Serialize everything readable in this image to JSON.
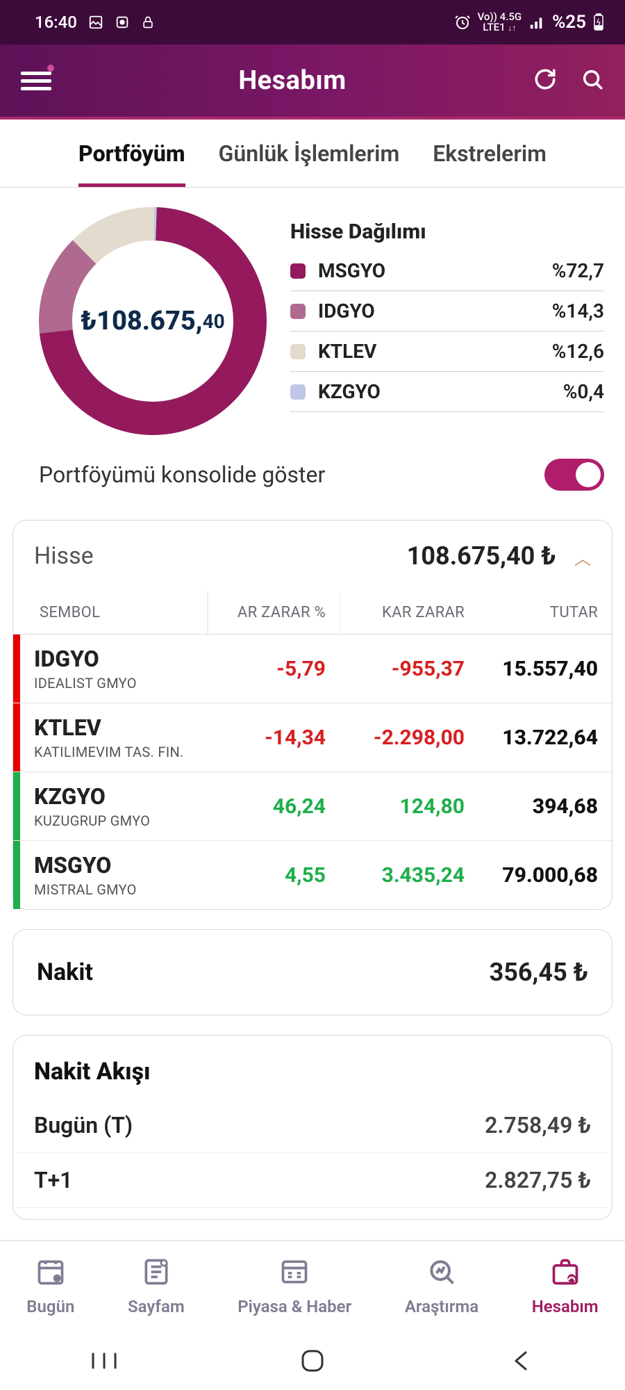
{
  "status": {
    "time": "16:40",
    "battery": "%25",
    "network": "4.5G",
    "carrier": "LTE1",
    "vo": "Vo))"
  },
  "app": {
    "title": "Hesabım"
  },
  "tabs": [
    {
      "label": "Portföyüm",
      "active": true
    },
    {
      "label": "Günlük İşlemlerim",
      "active": false
    },
    {
      "label": "Ekstrelerim",
      "active": false
    }
  ],
  "portfolio": {
    "total_int": "₺108.675,",
    "total_dec": "40",
    "chart": {
      "type": "donut",
      "background_color": "#ffffff",
      "stroke_width": 48,
      "radius": 140,
      "slices": [
        {
          "label": "MSGYO",
          "value": 72.7,
          "color": "#941a5d"
        },
        {
          "label": "IDGYO",
          "value": 14.3,
          "color": "#b06a90"
        },
        {
          "label": "KTLEV",
          "value": 12.6,
          "color": "#e3dbce"
        },
        {
          "label": "KZGYO",
          "value": 0.4,
          "color": "#bfc7e6"
        }
      ]
    },
    "dist_title": "Hisse Dağılımı",
    "dist": [
      {
        "label": "MSGYO",
        "pct": "%72,7",
        "color": "#941a5d"
      },
      {
        "label": "IDGYO",
        "pct": "%14,3",
        "color": "#b06a90"
      },
      {
        "label": "KTLEV",
        "pct": "%12,6",
        "color": "#e3dbce"
      },
      {
        "label": "KZGYO",
        "pct": "%0,4",
        "color": "#bfc7e6"
      }
    ],
    "consolidate_label": "Portföyümü konsolide göster",
    "consolidate_on": true
  },
  "stock_card": {
    "title": "Hisse",
    "amount": "108.675,40 ₺",
    "cols": {
      "symbol": "SEMBOL",
      "plpct": "AR ZARAR %",
      "pl": "KAR ZARAR",
      "amt": "TUTAR"
    },
    "rows": [
      {
        "code": "IDGYO",
        "name": "IDEALIST GMYO",
        "plpct": "-5,79",
        "pl": "-955,37",
        "amt": "15.557,40",
        "pos": false
      },
      {
        "code": "KTLEV",
        "name": "KATILIMEVIM TAS. FIN.",
        "plpct": "-14,34",
        "pl": "-2.298,00",
        "amt": "13.722,64",
        "pos": false
      },
      {
        "code": "KZGYO",
        "name": "KUZUGRUP GMYO",
        "plpct": "46,24",
        "pl": "124,80",
        "amt": "394,68",
        "pos": true
      },
      {
        "code": "MSGYO",
        "name": "MISTRAL GMYO",
        "plpct": "4,55",
        "pl": "3.435,24",
        "amt": "79.000,68",
        "pos": true
      }
    ],
    "colors": {
      "neg": "#d81f1f",
      "pos": "#1fae4a",
      "bar_neg": "#e60000",
      "bar_pos": "#1fae4a"
    }
  },
  "cash": {
    "label": "Nakit",
    "amount": "356,45 ₺"
  },
  "flow": {
    "title": "Nakit Akışı",
    "rows": [
      {
        "label": "Bugün (T)",
        "amount": "2.758,49 ₺"
      },
      {
        "label": "T+1",
        "amount": "2.827,75 ₺"
      }
    ]
  },
  "bottom_nav": [
    {
      "label": "Bugün",
      "active": false
    },
    {
      "label": "Sayfam",
      "active": false
    },
    {
      "label": "Piyasa & Haber",
      "active": false
    },
    {
      "label": "Araştırma",
      "active": false
    },
    {
      "label": "Hesabım",
      "active": true
    }
  ]
}
